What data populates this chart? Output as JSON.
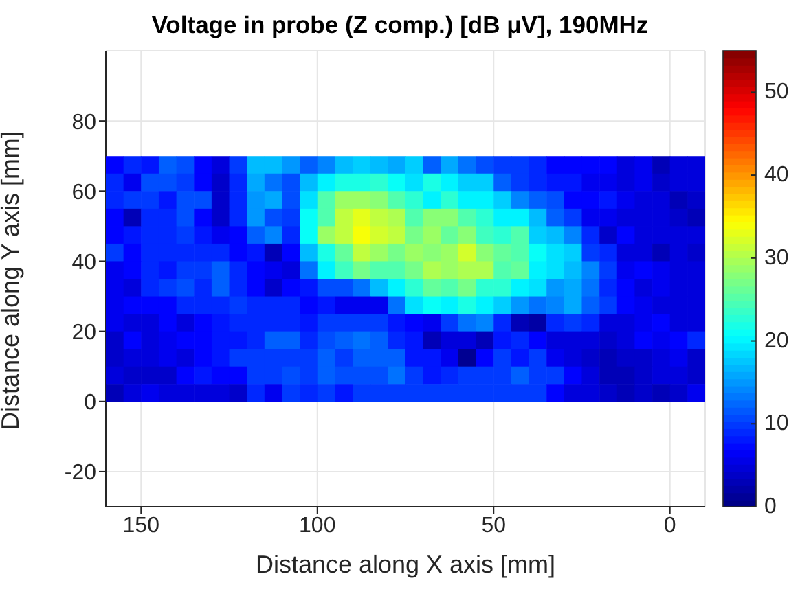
{
  "chart_data": {
    "type": "heatmap",
    "title": "Voltage in probe (Z comp.) [dB μV], 190MHz",
    "xlabel": "Distance along X axis [mm]",
    "ylabel": "Distance along Y axis [mm]",
    "x": [
      157.5,
      152.5,
      147.5,
      142.5,
      137.5,
      132.5,
      127.5,
      122.5,
      117.5,
      112.5,
      107.5,
      102.5,
      97.5,
      92.5,
      87.5,
      82.5,
      77.5,
      72.5,
      67.5,
      62.5,
      57.5,
      52.5,
      47.5,
      42.5,
      37.5,
      32.5,
      27.5,
      22.5,
      17.5,
      12.5,
      7.5,
      2.5,
      -2.5,
      -7.5
    ],
    "y": [
      67.5,
      62.5,
      57.5,
      52.5,
      47.5,
      42.5,
      37.5,
      32.5,
      27.5,
      22.5,
      17.5,
      12.5,
      7.5,
      2.5
    ],
    "cells": [
      [
        7,
        9,
        8,
        12,
        11,
        7,
        5,
        10,
        17,
        17,
        15,
        12,
        14,
        17,
        18,
        17,
        16,
        18,
        12,
        16,
        13,
        11,
        10,
        10,
        9,
        7,
        7,
        7,
        7,
        5,
        6,
        3,
        5,
        5
      ],
      [
        9,
        6,
        11,
        11,
        10,
        7,
        4,
        9,
        16,
        13,
        11,
        17,
        20,
        22,
        22,
        23,
        21,
        19,
        22,
        20,
        18,
        18,
        12,
        10,
        9,
        8,
        8,
        6,
        6,
        5,
        6,
        4,
        5,
        5
      ],
      [
        9,
        10,
        10,
        8,
        11,
        11,
        4,
        9,
        15,
        16,
        11,
        19,
        25,
        29,
        29,
        28,
        25,
        23,
        20,
        23,
        20,
        20,
        18,
        14,
        12,
        11,
        7,
        7,
        8,
        6,
        5,
        5,
        3,
        4
      ],
      [
        7,
        3,
        9,
        9,
        11,
        7,
        4,
        9,
        15,
        11,
        10,
        21,
        25,
        31,
        33,
        31,
        30,
        25,
        28,
        28,
        25,
        23,
        20,
        20,
        17,
        12,
        10,
        6,
        6,
        5,
        5,
        5,
        4,
        3
      ],
      [
        7,
        8,
        9,
        9,
        10,
        8,
        6,
        7,
        12,
        14,
        9,
        21,
        29,
        31,
        34,
        32,
        31,
        27,
        29,
        26,
        28,
        24,
        23,
        25,
        18,
        17,
        14,
        9,
        4,
        7,
        5,
        5,
        5,
        5
      ],
      [
        10,
        7,
        9,
        9,
        9,
        9,
        9,
        7,
        8,
        3,
        7,
        17,
        22,
        26,
        31,
        29,
        27,
        29,
        28,
        29,
        32,
        28,
        26,
        25,
        21,
        19,
        18,
        10,
        9,
        5,
        5,
        3,
        5,
        4
      ],
      [
        6,
        7,
        9,
        8,
        10,
        10,
        12,
        9,
        7,
        6,
        5,
        13,
        20,
        24,
        27,
        25,
        25,
        27,
        30,
        29,
        30,
        30,
        25,
        26,
        20,
        19,
        17,
        14,
        10,
        6,
        7,
        6,
        5,
        5
      ],
      [
        6,
        5,
        9,
        10,
        11,
        9,
        12,
        9,
        7,
        4,
        7,
        8,
        11,
        11,
        13,
        17,
        20,
        23,
        26,
        25,
        27,
        23,
        23,
        20,
        19,
        15,
        16,
        13,
        9,
        7,
        5,
        6,
        5,
        5
      ],
      [
        6,
        7,
        7,
        7,
        9,
        9,
        9,
        10,
        9,
        9,
        9,
        7,
        8,
        6,
        6,
        6,
        13,
        19,
        21,
        20,
        22,
        20,
        18,
        15,
        13,
        14,
        16,
        12,
        10,
        7,
        6,
        5,
        5,
        5
      ],
      [
        6,
        5,
        5,
        7,
        5,
        7,
        8,
        9,
        9,
        9,
        9,
        8,
        10,
        10,
        10,
        10,
        8,
        7,
        6,
        10,
        13,
        14,
        9,
        3,
        2,
        9,
        10,
        9,
        5,
        5,
        6,
        7,
        5,
        5
      ],
      [
        4,
        7,
        5,
        6,
        7,
        7,
        8,
        8,
        9,
        12,
        12,
        9,
        11,
        12,
        13,
        12,
        9,
        8,
        3,
        5,
        5,
        3,
        8,
        9,
        7,
        5,
        5,
        5,
        4,
        5,
        7,
        6,
        7,
        9
      ],
      [
        4,
        5,
        5,
        6,
        5,
        7,
        8,
        10,
        10,
        10,
        10,
        10,
        12,
        10,
        12,
        12,
        12,
        8,
        8,
        6,
        1,
        7,
        10,
        8,
        10,
        6,
        5,
        4,
        3,
        4,
        4,
        5,
        6,
        4
      ],
      [
        5,
        4,
        4,
        4,
        7,
        8,
        7,
        7,
        10,
        10,
        11,
        10,
        12,
        11,
        11,
        11,
        13,
        10,
        8,
        9,
        10,
        10,
        10,
        12,
        10,
        10,
        7,
        5,
        3,
        3,
        4,
        5,
        5,
        4
      ],
      [
        3,
        5,
        6,
        5,
        5,
        5,
        5,
        4,
        9,
        6,
        10,
        9,
        10,
        8,
        10,
        10,
        10,
        10,
        10,
        10,
        10,
        10,
        10,
        10,
        10,
        7,
        5,
        5,
        4,
        3,
        4,
        3,
        4,
        6
      ]
    ],
    "xlim": [
      160,
      -10
    ],
    "xticks": [
      150,
      100,
      50,
      0
    ],
    "ylim": [
      -30,
      100
    ],
    "yticks": [
      -20,
      0,
      20,
      40,
      60,
      80
    ],
    "clim": [
      0,
      55
    ],
    "cticks": [
      0,
      10,
      20,
      30,
      40,
      50
    ],
    "grid": true
  }
}
